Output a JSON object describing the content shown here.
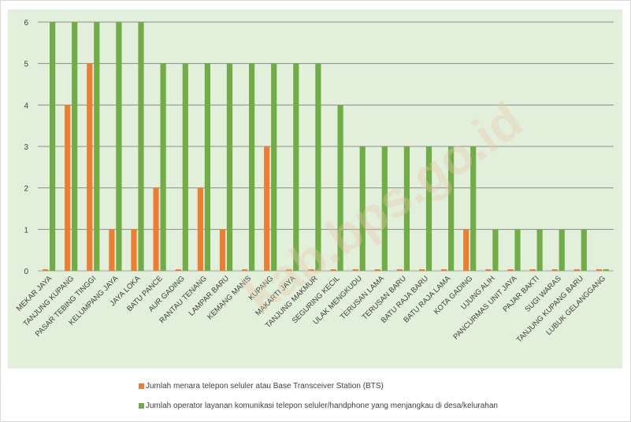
{
  "chart_data": {
    "type": "bar",
    "title": "",
    "xlabel": "",
    "ylabel": "",
    "ylim": [
      0,
      6
    ],
    "y_ticks": [
      0,
      1,
      2,
      3,
      4,
      5,
      6
    ],
    "grid": true,
    "legend_position": "bottom",
    "background_color": "#e2efda",
    "categories": [
      "MEKAR JAYA",
      "TANJUNG KUPANG",
      "PASAR TEBING TINGGI",
      "KELUMPANG JAYA",
      "JAYA LOKA",
      "BATU PANCE",
      "AUR GADING",
      "RANTAU TENANG",
      "LAMPAR BARU",
      "KEMANG MANIS",
      "KUPANG",
      "MAKARTI JAYA",
      "TANJUNG MAKMUR",
      "SEGURING KECIL",
      "ULAK MENGKUDU",
      "TERUSAN LAMA",
      "TERUSAN BARU",
      "BATU RAJA BARU",
      "BATU RAJA LAMA",
      "KOTA GADING",
      "UJUNG ALIH",
      "PANCURMAS UNIT JAYA",
      "PAJAR BAKTI",
      "SUGI WARAS",
      "TANJUNG KUPANG BARU",
      "LUBUK GELANGGANG"
    ],
    "series": [
      {
        "name": "Jumlah menara telepon seluler atau Base Transceiver Station (BTS)",
        "color": "#ed7d31",
        "values": [
          0,
          4,
          5,
          1,
          1,
          2,
          0,
          2,
          1,
          0,
          3,
          0,
          0,
          0,
          0,
          0,
          0,
          0,
          0,
          1,
          0,
          0,
          0,
          0,
          0,
          0
        ]
      },
      {
        "name": "Jumlah operator layanan komunikasi telepon seluler/handphone yang menjangkau di desa/kelurahan",
        "color": "#70ad47",
        "values": [
          6,
          6,
          6,
          6,
          6,
          5,
          5,
          5,
          5,
          5,
          5,
          5,
          5,
          4,
          3,
          3,
          3,
          3,
          3,
          3,
          1,
          1,
          1,
          1,
          1,
          0
        ]
      }
    ]
  },
  "watermark": "kab.bps.go.id"
}
